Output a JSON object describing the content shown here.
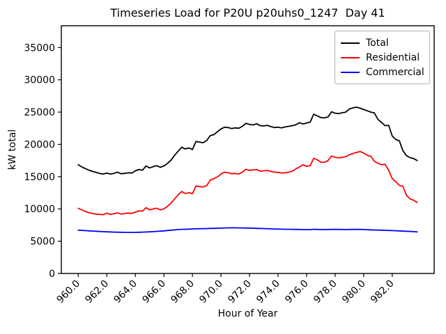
{
  "chart_data": {
    "type": "line",
    "title": "Timeseries Load for P20U p20uhs0_1247  Day 41",
    "xlabel": "Hour of Year",
    "ylabel": "kW total",
    "xlim": [
      958.8125,
      984.9375
    ],
    "ylim": [
      0,
      38375
    ],
    "grid": false,
    "xticks": [
      {
        "value": 960,
        "label": "960.0"
      },
      {
        "value": 962,
        "label": "962.0"
      },
      {
        "value": 964,
        "label": "964.0"
      },
      {
        "value": 966,
        "label": "966.0"
      },
      {
        "value": 968,
        "label": "968.0"
      },
      {
        "value": 970,
        "label": "970.0"
      },
      {
        "value": 972,
        "label": "972.0"
      },
      {
        "value": 974,
        "label": "974.0"
      },
      {
        "value": 976,
        "label": "976.0"
      },
      {
        "value": 978,
        "label": "978.0"
      },
      {
        "value": 980,
        "label": "980.0"
      },
      {
        "value": 982,
        "label": "982.0"
      }
    ],
    "yticks": [
      {
        "value": 0,
        "label": "0"
      },
      {
        "value": 5000,
        "label": "5000"
      },
      {
        "value": 10000,
        "label": "10000"
      },
      {
        "value": 15000,
        "label": "15000"
      },
      {
        "value": 20000,
        "label": "20000"
      },
      {
        "value": 25000,
        "label": "25000"
      },
      {
        "value": 30000,
        "label": "30000"
      },
      {
        "value": 35000,
        "label": "35000"
      }
    ],
    "legend": {
      "position": "upper right",
      "entries": [
        {
          "label": "Total",
          "color": "#000000"
        },
        {
          "label": "Residential",
          "color": "#ff0000"
        },
        {
          "label": "Commercial",
          "color": "#0000ff"
        }
      ]
    },
    "x": [
      960.0,
      960.25,
      960.5,
      960.75,
      961.0,
      961.25,
      961.5,
      961.75,
      962.0,
      962.25,
      962.5,
      962.75,
      963.0,
      963.25,
      963.5,
      963.75,
      964.0,
      964.25,
      964.5,
      964.75,
      965.0,
      965.25,
      965.5,
      965.75,
      966.0,
      966.25,
      966.5,
      966.75,
      967.0,
      967.25,
      967.5,
      967.75,
      968.0,
      968.25,
      968.5,
      968.75,
      969.0,
      969.25,
      969.5,
      969.75,
      970.0,
      970.25,
      970.5,
      970.75,
      971.0,
      971.25,
      971.5,
      971.75,
      972.0,
      972.25,
      972.5,
      972.75,
      973.0,
      973.25,
      973.5,
      973.75,
      974.0,
      974.25,
      974.5,
      974.75,
      975.0,
      975.25,
      975.5,
      975.75,
      976.0,
      976.25,
      976.5,
      976.75,
      977.0,
      977.25,
      977.5,
      977.75,
      978.0,
      978.25,
      978.5,
      978.75,
      979.0,
      979.25,
      979.5,
      979.75,
      980.0,
      980.25,
      980.5,
      980.75,
      981.0,
      981.25,
      981.5,
      981.75,
      982.0,
      982.25,
      982.5,
      982.75,
      983.0,
      983.25,
      983.5,
      983.75
    ],
    "series": [
      {
        "name": "Total",
        "color": "#000000",
        "values": [
          16850,
          16500,
          16250,
          16000,
          15800,
          15650,
          15500,
          15400,
          15550,
          15400,
          15500,
          15700,
          15450,
          15500,
          15600,
          15550,
          15900,
          16100,
          16000,
          16650,
          16350,
          16550,
          16700,
          16450,
          16650,
          17050,
          17550,
          18300,
          18950,
          19550,
          19300,
          19450,
          19200,
          20450,
          20350,
          20250,
          20600,
          21350,
          21500,
          21950,
          22400,
          22650,
          22600,
          22450,
          22550,
          22500,
          22800,
          23250,
          23100,
          23000,
          23200,
          22900,
          22850,
          22950,
          22750,
          22600,
          22650,
          22550,
          22700,
          22800,
          22900,
          23050,
          23350,
          23150,
          23300,
          23450,
          24690,
          24400,
          24150,
          24100,
          24250,
          25040,
          24830,
          24760,
          24900,
          25000,
          25480,
          25650,
          25760,
          25600,
          25400,
          25200,
          25000,
          24870,
          23860,
          23400,
          22900,
          22960,
          21300,
          20750,
          20550,
          19000,
          18250,
          17950,
          17800,
          17500
        ]
      },
      {
        "name": "Residential",
        "color": "#ff0000",
        "values": [
          10100,
          9850,
          9600,
          9400,
          9300,
          9200,
          9150,
          9100,
          9350,
          9150,
          9250,
          9400,
          9200,
          9300,
          9350,
          9300,
          9500,
          9700,
          9650,
          10200,
          9850,
          10000,
          10100,
          9850,
          10000,
          10400,
          10900,
          11550,
          12200,
          12700,
          12400,
          12500,
          12350,
          13550,
          13450,
          13400,
          13600,
          14450,
          14700,
          14950,
          15400,
          15700,
          15600,
          15450,
          15500,
          15400,
          15700,
          16150,
          15950,
          16050,
          16100,
          15850,
          15900,
          15950,
          15800,
          15700,
          15650,
          15550,
          15600,
          15700,
          15850,
          16200,
          16500,
          16850,
          16600,
          16700,
          17850,
          17600,
          17250,
          17200,
          17500,
          18200,
          18000,
          17900,
          18000,
          18100,
          18400,
          18600,
          18750,
          18900,
          18650,
          18300,
          18150,
          17400,
          17050,
          16850,
          16900,
          16000,
          14700,
          14200,
          13650,
          13500,
          12100,
          11550,
          11350,
          11000
        ]
      },
      {
        "name": "Commercial",
        "color": "#0000ff",
        "values": [
          6700,
          6670,
          6640,
          6600,
          6570,
          6540,
          6500,
          6480,
          6450,
          6430,
          6400,
          6390,
          6380,
          6370,
          6360,
          6360,
          6370,
          6380,
          6400,
          6420,
          6450,
          6480,
          6520,
          6550,
          6600,
          6650,
          6700,
          6750,
          6800,
          6830,
          6850,
          6870,
          6900,
          6920,
          6930,
          6940,
          6950,
          6970,
          6990,
          7010,
          7030,
          7050,
          7060,
          7070,
          7070,
          7060,
          7050,
          7040,
          7030,
          7010,
          6990,
          6970,
          6950,
          6930,
          6910,
          6890,
          6880,
          6860,
          6850,
          6840,
          6830,
          6820,
          6810,
          6800,
          6790,
          6790,
          6850,
          6820,
          6800,
          6800,
          6810,
          6820,
          6830,
          6820,
          6810,
          6800,
          6810,
          6820,
          6830,
          6820,
          6800,
          6780,
          6760,
          6740,
          6720,
          6700,
          6680,
          6660,
          6640,
          6620,
          6600,
          6570,
          6540,
          6510,
          6480,
          6440
        ]
      }
    ]
  }
}
